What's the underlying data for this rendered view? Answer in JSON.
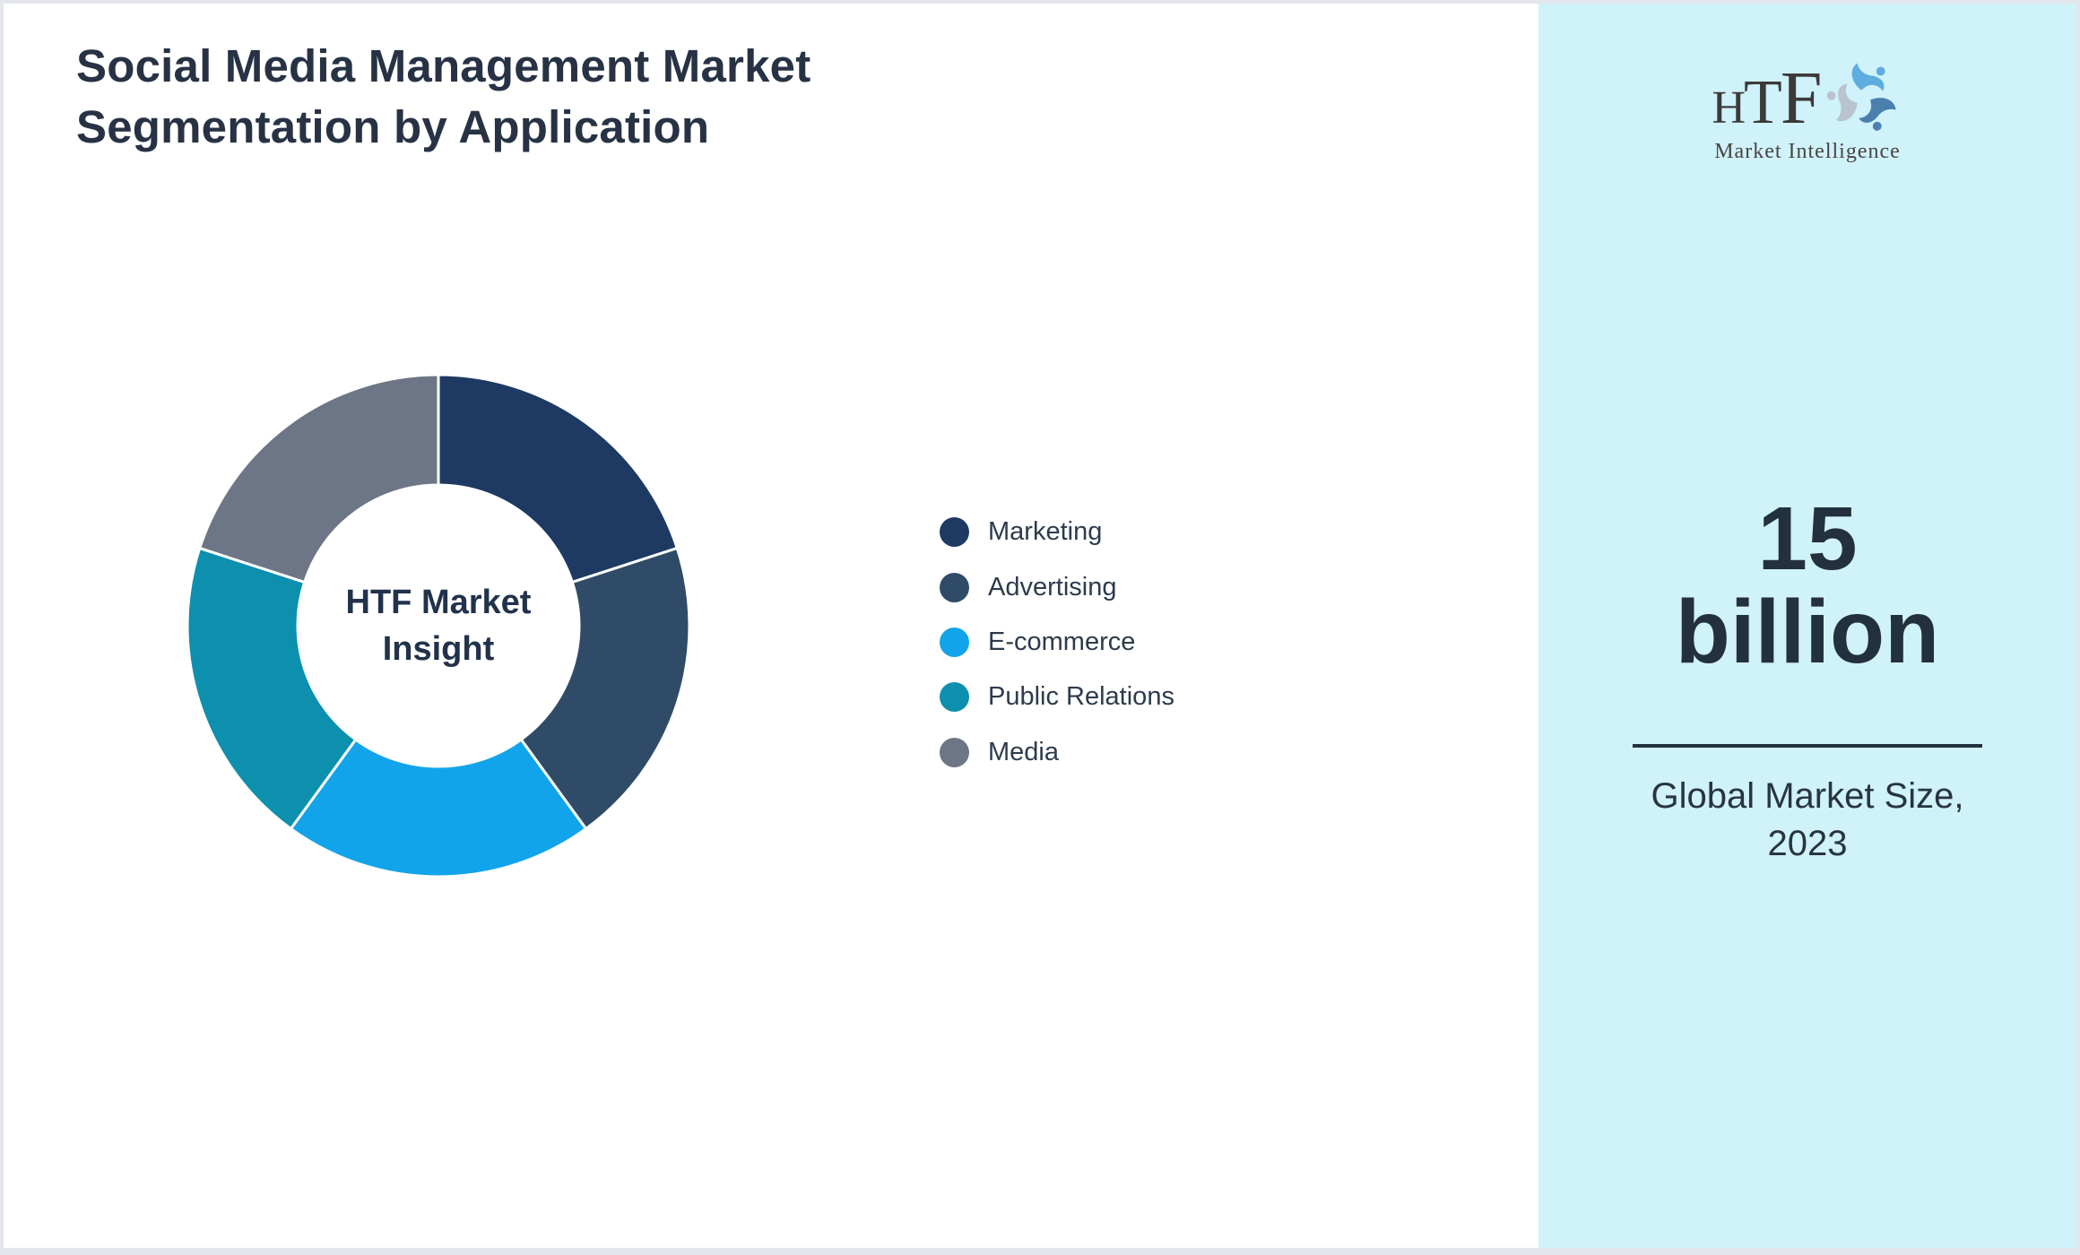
{
  "header": {
    "title_lines": [
      "Social Media Management Market",
      "Segmentation by Application"
    ]
  },
  "chart_data": {
    "type": "pie",
    "subtype": "donut",
    "center_label_lines": [
      "HTF Market",
      "Insight"
    ],
    "categories": [
      "Marketing",
      "Advertising",
      "E-commerce",
      "Public Relations",
      "Media"
    ],
    "values": [
      20,
      20,
      20,
      20,
      20
    ],
    "colors": [
      "#1e3a62",
      "#2f4b67",
      "#12a4ea",
      "#0c90ae",
      "#6d7686"
    ],
    "legend_position": "right",
    "start_angle_deg": 0,
    "inner_radius_ratio": 0.56,
    "slice_gap_color": "#ffffff"
  },
  "sidebar": {
    "background": "#d0f2fa",
    "logo": {
      "letters": [
        "H",
        "T",
        "F"
      ],
      "subtext": "Market Intelligence"
    },
    "stat": {
      "value_lines": [
        "15",
        "billion"
      ],
      "caption_lines": [
        "Global Market Size,",
        "2023"
      ]
    }
  }
}
